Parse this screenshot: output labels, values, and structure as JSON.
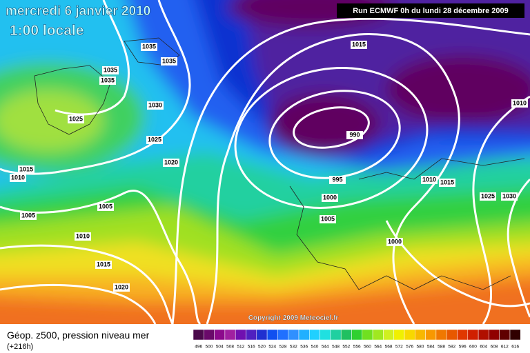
{
  "header": {
    "date": "mercredi 6 janvier 2010",
    "time": "1:00 locale"
  },
  "run": "Run ECMWF 0h du lundi 28 décembre 2009",
  "copyright": "Copyright 2009 Meteociel.fr",
  "isobar_labels": [
    1035,
    1035,
    1035,
    1035,
    1030,
    1025,
    1025,
    1020,
    1015,
    1010,
    1005,
    1005,
    1010,
    1015,
    1020,
    1015,
    990,
    995,
    1000,
    1005,
    1000,
    1010,
    1015,
    1025,
    1030,
    1010
  ],
  "legend": {
    "title": "Géop. z500, pression niveau mer",
    "lead": "(+216h)",
    "scale": {
      "values": [
        496,
        500,
        504,
        508,
        512,
        516,
        520,
        524,
        528,
        532,
        536,
        540,
        544,
        548,
        552,
        556,
        560,
        564,
        568,
        572,
        576,
        580,
        584,
        588,
        592,
        596,
        600,
        604,
        608,
        612,
        616
      ],
      "colors": [
        "#4b0a4b",
        "#6a0a6a",
        "#8c0a8c",
        "#a020a0",
        "#7010b0",
        "#5020c0",
        "#2030d0",
        "#1050f0",
        "#2070ff",
        "#3090ff",
        "#20b0ff",
        "#20d0ff",
        "#20e0e0",
        "#20d0a0",
        "#20c060",
        "#30d030",
        "#70e020",
        "#a0e820",
        "#d0f020",
        "#f0f000",
        "#f8d800",
        "#f8b800",
        "#f89800",
        "#f07800",
        "#e85800",
        "#e03800",
        "#d02000",
        "#b01000",
        "#900000",
        "#600000",
        "#300000"
      ]
    }
  }
}
